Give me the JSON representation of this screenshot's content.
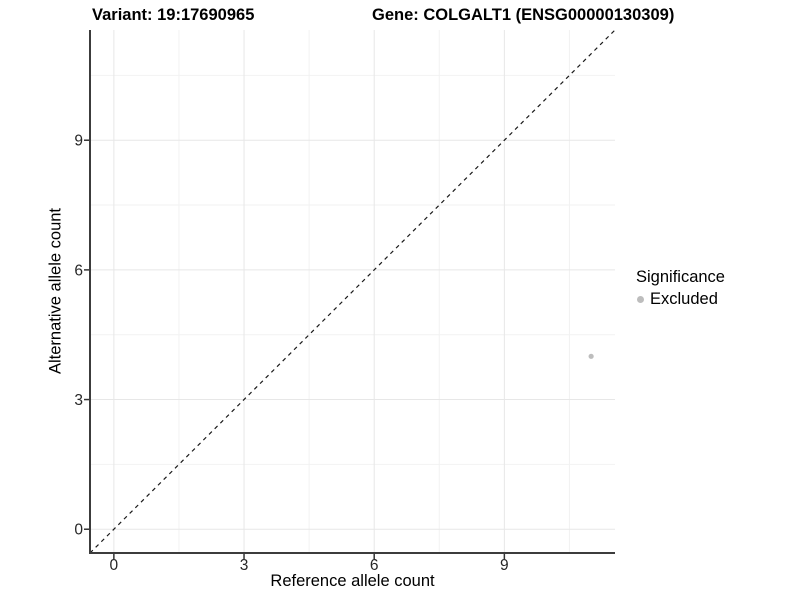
{
  "titles": {
    "left": "Variant: 19:17690965",
    "right": "Gene: COLGALT1 (ENSG00000130309)"
  },
  "legend": {
    "title": "Significance",
    "items": [
      {
        "label": "Excluded",
        "color": "#bdbdbd"
      }
    ]
  },
  "chart_data": {
    "type": "scatter",
    "title_left": "Variant: 19:17690965",
    "title_right": "Gene: COLGALT1 (ENSG00000130309)",
    "xlabel": "Reference allele count",
    "ylabel": "Alternative allele count",
    "xlim": [
      -0.55,
      11.55
    ],
    "ylim": [
      -0.55,
      11.55
    ],
    "xticks": [
      0,
      3,
      6,
      9
    ],
    "yticks": [
      0,
      3,
      6,
      9
    ],
    "minor_ticks": [
      1.5,
      4.5,
      7.5,
      10.5
    ],
    "grid": true,
    "legend_position": "right",
    "series": [
      {
        "name": "Excluded",
        "color": "#bdbdbd",
        "points": [
          {
            "x": 11,
            "y": 4
          }
        ]
      }
    ],
    "identity_line": {
      "type": "y=x",
      "style": "dashed",
      "color": "#1a1a1a"
    },
    "colors": {
      "grid_major": "#e7e7e7",
      "grid_minor": "#f2f2f2",
      "axis_line": "#3c3c3c",
      "tick_mark": "#333333",
      "tick_text": "#262626",
      "point": "#bdbdbd"
    }
  }
}
